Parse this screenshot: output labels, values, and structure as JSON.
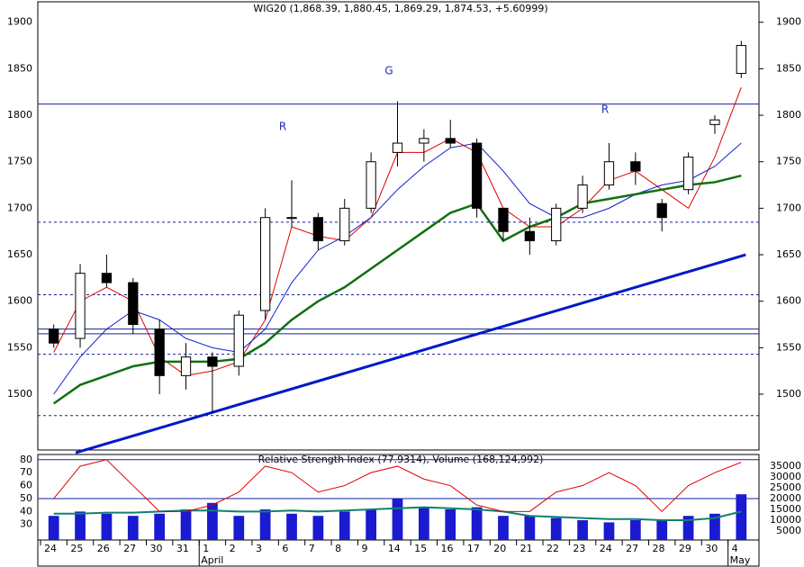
{
  "chart_data": [
    {
      "type": "candlestick",
      "title": "WIG20 (1,868.39, 1,880.45, 1,869.29, 1,874.53, +5.60999)",
      "categories": [
        "24",
        "25",
        "26",
        "27",
        "30",
        "31",
        "1",
        "2",
        "3",
        "6",
        "7",
        "8",
        "9",
        "14",
        "15",
        "16",
        "17",
        "20",
        "21",
        "22",
        "23",
        "24",
        "27",
        "28",
        "29",
        "30",
        "4"
      ],
      "months": [
        {
          "label": "April",
          "at": "1"
        },
        {
          "label": "May",
          "at": "4"
        }
      ],
      "open": [
        1570,
        1560,
        1630,
        1620,
        1570,
        1520,
        1540,
        1530,
        1590,
        1690,
        1690,
        1665,
        1700,
        1760,
        1770,
        1775,
        1770,
        1700,
        1675,
        1665,
        1700,
        1725,
        1750,
        1705,
        1720,
        1790,
        1845
      ],
      "high": [
        1575,
        1640,
        1650,
        1625,
        1580,
        1555,
        1545,
        1590,
        1700,
        1730,
        1695,
        1710,
        1760,
        1815,
        1785,
        1795,
        1775,
        1700,
        1690,
        1705,
        1735,
        1770,
        1760,
        1710,
        1760,
        1800,
        1880
      ],
      "low": [
        1550,
        1550,
        1615,
        1565,
        1500,
        1505,
        1480,
        1520,
        1580,
        1680,
        1655,
        1660,
        1695,
        1745,
        1750,
        1765,
        1690,
        1665,
        1650,
        1660,
        1695,
        1720,
        1725,
        1675,
        1715,
        1780,
        1840
      ],
      "close": [
        1555,
        1630,
        1620,
        1575,
        1520,
        1540,
        1530,
        1585,
        1690,
        1690,
        1665,
        1700,
        1750,
        1770,
        1775,
        1770,
        1700,
        1675,
        1665,
        1700,
        1725,
        1750,
        1740,
        1690,
        1755,
        1795,
        1875
      ],
      "series": [
        {
          "color": "#e00000",
          "values": [
            1545,
            1600,
            1615,
            1600,
            1540,
            1520,
            1525,
            1535,
            1580,
            1680,
            1670,
            1665,
            1690,
            1760,
            1760,
            1775,
            1760,
            1700,
            1680,
            1680,
            1700,
            1730,
            1740,
            1720,
            1700,
            1755,
            1830
          ]
        },
        {
          "color": "#1020d0",
          "values": [
            1500,
            1540,
            1570,
            1590,
            1580,
            1560,
            1550,
            1545,
            1570,
            1620,
            1655,
            1670,
            1690,
            1720,
            1745,
            1765,
            1770,
            1740,
            1705,
            1690,
            1690,
            1700,
            1715,
            1725,
            1730,
            1745,
            1770
          ]
        },
        {
          "color": "#107010",
          "values": [
            1490,
            1510,
            1520,
            1530,
            1535,
            1535,
            1535,
            1538,
            1555,
            1580,
            1600,
            1615,
            1635,
            1655,
            1675,
            1695,
            1705,
            1665,
            1680,
            1690,
            1705,
            1710,
            1715,
            1720,
            1725,
            1728,
            1735
          ]
        }
      ],
      "levels_solid": [
        1812,
        1570,
        1565
      ],
      "levels_dashed": [
        1685,
        1607,
        1543,
        1477
      ],
      "trendline": [
        1437,
        1650
      ],
      "annotations": [
        "R",
        "G",
        "R"
      ],
      "ylim": [
        1440,
        1922
      ],
      "yticks": [
        1500,
        1550,
        1600,
        1650,
        1700,
        1750,
        1800,
        1850,
        1900
      ]
    },
    {
      "type": "rsi-volume",
      "title": "Relative Strength Index (77.9314), Volume (168,124,992)",
      "rsi": [
        50,
        75,
        80,
        60,
        40,
        40,
        45,
        55,
        75,
        70,
        55,
        60,
        70,
        75,
        65,
        60,
        45,
        40,
        40,
        55,
        60,
        70,
        60,
        40,
        60,
        70,
        78
      ],
      "volume": [
        12000,
        14000,
        13000,
        12000,
        13000,
        15000,
        18000,
        12000,
        15000,
        13000,
        12000,
        14000,
        15000,
        20000,
        16000,
        15000,
        16000,
        12000,
        12000,
        11000,
        10000,
        9000,
        10000,
        10000,
        12000,
        13000,
        22000
      ],
      "volume_ma": [
        13000,
        13000,
        13500,
        13500,
        14000,
        14500,
        14500,
        14000,
        14000,
        14500,
        14000,
        14500,
        15000,
        15500,
        16000,
        15500,
        15000,
        14000,
        12000,
        11500,
        11000,
        10500,
        10500,
        10000,
        10000,
        11000,
        14000
      ],
      "rsi_levels": [
        80,
        50
      ],
      "ylim": [
        18,
        84
      ],
      "yticks": [
        30,
        40,
        50,
        60,
        70,
        80
      ],
      "y2lim": [
        833,
        40417
      ],
      "y2ticks": [
        5000,
        10000,
        15000,
        20000,
        25000,
        30000,
        35000
      ]
    }
  ]
}
